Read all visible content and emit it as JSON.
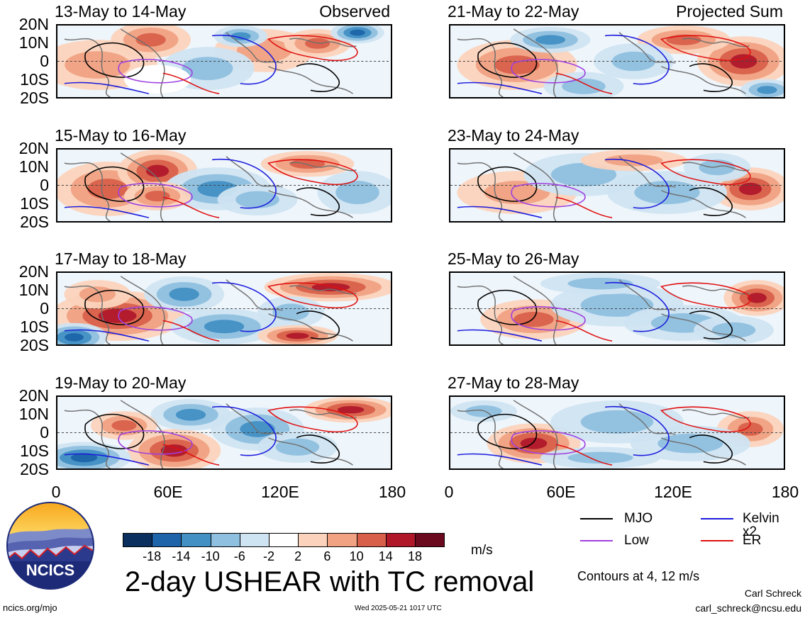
{
  "left_panels": [
    {
      "title": "13-May to 14-May",
      "tag": "Observed"
    },
    {
      "title": "15-May to 16-May",
      "tag": ""
    },
    {
      "title": "17-May to 18-May",
      "tag": ""
    },
    {
      "title": "19-May to 20-May",
      "tag": ""
    }
  ],
  "right_panels": [
    {
      "title": "21-May to 22-May",
      "tag": "Projected Sum"
    },
    {
      "title": "23-May to 24-May",
      "tag": ""
    },
    {
      "title": "25-May to 26-May",
      "tag": ""
    },
    {
      "title": "27-May to 28-May",
      "tag": ""
    }
  ],
  "lat_labels": [
    "20N",
    "10N",
    "0",
    "10S",
    "20S"
  ],
  "lon_labels": [
    "0",
    "60E",
    "120E",
    "180"
  ],
  "legend": [
    {
      "label": "MJO",
      "color": "#000000"
    },
    {
      "label": "Kelvin x2",
      "color": "#1a1adc"
    },
    {
      "label": "Low",
      "color": "#a040e0"
    },
    {
      "label": "ER",
      "color": "#e01010"
    }
  ],
  "colorbar": {
    "labels": [
      "-18",
      "-14",
      "-10",
      "-6",
      "-2",
      "2",
      "6",
      "10",
      "14",
      "18"
    ],
    "colors": [
      "#0b2f5e",
      "#1e64aa",
      "#4290c4",
      "#8fc0df",
      "#cfe4f2",
      "#ffffff",
      "#fbd3bc",
      "#f0a283",
      "#d8604a",
      "#b0182a",
      "#6b0a1e"
    ],
    "unit": "m/s"
  },
  "main_title": "2-day USHEAR with TC removal",
  "contours_note": "Contours at 4, 12 m/s",
  "logo_text": "NCICS",
  "site": "ncics.org/mjo",
  "timestamp": "Wed 2025-05-21 1017 UTC",
  "author": "Carl Schreck",
  "email": "carl_schreck@ncsu.edu"
}
